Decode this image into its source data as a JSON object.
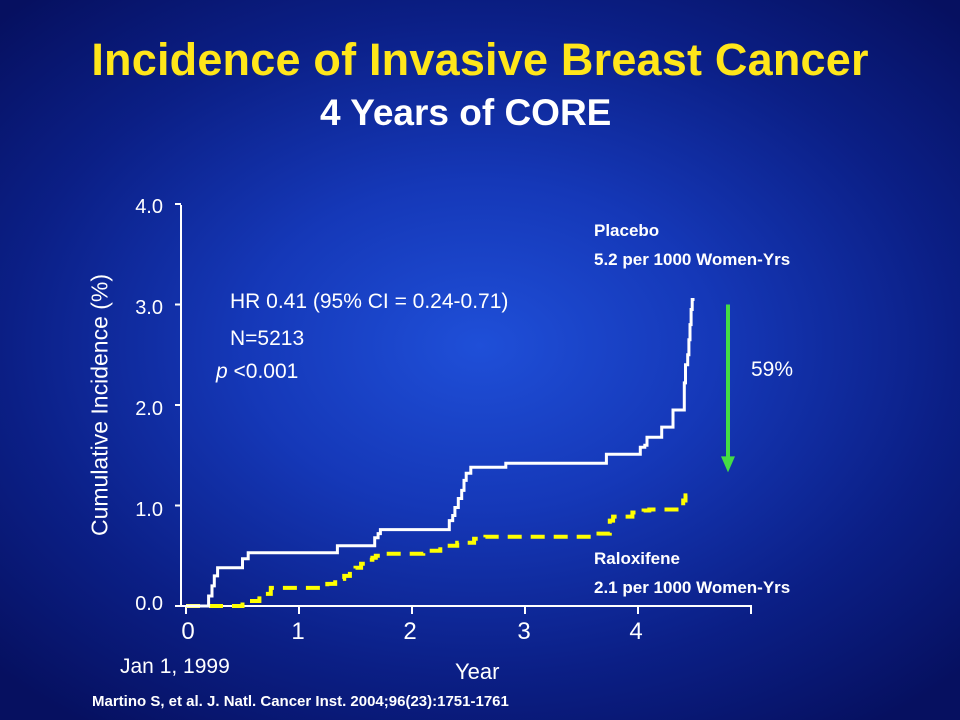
{
  "title": "Incidence of Invasive Breast Cancer",
  "subtitle": "4 Years of CORE",
  "colors": {
    "title": "#ffe61a",
    "placebo_line": "#ffffff",
    "raloxifene_line": "#ffff00",
    "arrow": "#44dd44"
  },
  "chart_data": {
    "type": "line",
    "title": "Incidence of Invasive Breast Cancer",
    "subtitle": "4 Years of CORE",
    "xlabel": "Year",
    "x_start_label": "Jan 1, 1999",
    "ylabel": "Cumulative Incidence (%)",
    "xlim": [
      0,
      5
    ],
    "ylim": [
      0,
      4
    ],
    "x_ticks": [
      "0",
      "1",
      "2",
      "3",
      "4"
    ],
    "y_ticks": [
      "0.0",
      "1.0",
      "2.0",
      "3.0",
      "4.0"
    ],
    "grid": false,
    "series": [
      {
        "name": "Placebo",
        "style": "solid",
        "x": [
          0,
          0.17,
          0.2,
          0.23,
          0.25,
          0.28,
          0.3,
          0.46,
          0.5,
          0.55,
          1.32,
          1.34,
          1.38,
          1.67,
          1.7,
          1.72,
          2.26,
          2.33,
          2.36,
          2.38,
          2.41,
          2.44,
          2.46,
          2.48,
          2.52,
          2.55,
          2.8,
          2.83,
          3.7,
          3.72,
          4.0,
          4.02,
          4.06,
          4.08,
          4.19,
          4.21,
          4.29,
          4.31,
          4.39,
          4.41,
          4.42,
          4.44,
          4.45,
          4.46,
          4.47,
          4.48,
          4.5
        ],
        "y": [
          0,
          0,
          0.1,
          0.2,
          0.3,
          0.38,
          0.38,
          0.38,
          0.47,
          0.53,
          0.53,
          0.6,
          0.6,
          0.68,
          0.72,
          0.76,
          0.76,
          0.85,
          0.9,
          0.98,
          1.07,
          1.15,
          1.25,
          1.32,
          1.38,
          1.38,
          1.38,
          1.42,
          1.42,
          1.51,
          1.51,
          1.58,
          1.6,
          1.68,
          1.68,
          1.78,
          1.78,
          1.95,
          1.95,
          2.22,
          2.4,
          2.5,
          2.65,
          2.8,
          2.95,
          3.05,
          3.05
        ]
      },
      {
        "name": "Raloxifene",
        "style": "dashed",
        "x": [
          0,
          0.45,
          0.5,
          0.65,
          0.7,
          0.75,
          1.2,
          1.25,
          1.32,
          1.4,
          1.45,
          1.5,
          1.55,
          1.62,
          1.65,
          1.68,
          1.72,
          2.1,
          2.25,
          2.4,
          2.55,
          2.65,
          2.72,
          2.75,
          3.5,
          3.65,
          3.75,
          3.78,
          3.95,
          4.05,
          4.1,
          4.2,
          4.37,
          4.4,
          4.42,
          4.5
        ],
        "y": [
          0,
          0,
          0.05,
          0.1,
          0.12,
          0.18,
          0.18,
          0.22,
          0.27,
          0.3,
          0.35,
          0.38,
          0.42,
          0.46,
          0.48,
          0.5,
          0.52,
          0.55,
          0.6,
          0.63,
          0.67,
          0.69,
          0.69,
          0.69,
          0.69,
          0.72,
          0.85,
          0.89,
          0.93,
          0.95,
          0.96,
          0.96,
          0.96,
          1.05,
          1.1,
          1.1
        ]
      }
    ],
    "annotations": {
      "hr": "HR 0.41 (95% CI = 0.24-0.71)",
      "n": "N=5213",
      "p_symbol": "p",
      "p_value": " <0.001",
      "reduction": "59%",
      "placebo_label": "Placebo",
      "placebo_rate": "5.2 per 1000 Women-Yrs",
      "raloxifene_label": "Raloxifene",
      "raloxifene_rate": "2.1 per 1000 Women-Yrs",
      "arrow_from_y": 3.0,
      "arrow_to_y": 1.35
    }
  },
  "citation": "Martino S, et al.  J. Natl. Cancer Inst. 2004;96(23):1751-1761"
}
